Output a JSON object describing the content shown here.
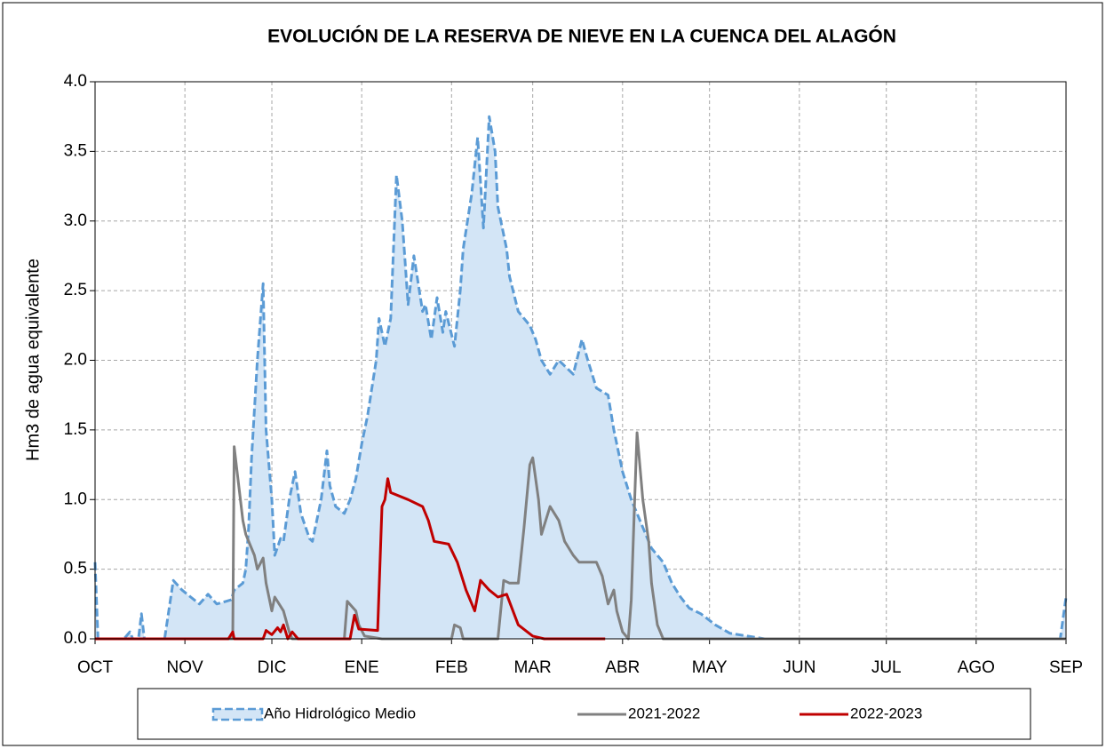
{
  "chart_data": {
    "type": "line",
    "title": "EVOLUCIÓN  DE LA RESERVA DE NIEVE EN LA CUENCA DEL ALAGÓN",
    "y_label": "Hm3  de agua equivalente",
    "xlim": [
      0,
      335
    ],
    "xticks": [
      {
        "value": 0,
        "label": "OCT"
      },
      {
        "value": 31,
        "label": "NOV"
      },
      {
        "value": 61,
        "label": "DIC"
      },
      {
        "value": 92,
        "label": "ENE"
      },
      {
        "value": 123,
        "label": "FEB"
      },
      {
        "value": 151,
        "label": "MAR"
      },
      {
        "value": 182,
        "label": "ABR"
      },
      {
        "value": 212,
        "label": "MAY"
      },
      {
        "value": 243,
        "label": "JUN"
      },
      {
        "value": 273,
        "label": "JUL"
      },
      {
        "value": 304,
        "label": "AGO"
      },
      {
        "value": 335,
        "label": "SEP"
      }
    ],
    "ylim": [
      0,
      4
    ],
    "yticks": [
      {
        "value": 0,
        "label": "0.0"
      },
      0.5,
      {
        "value": 1,
        "label": "1.0"
      },
      1.5,
      {
        "value": 2,
        "label": "2.0"
      },
      2.5,
      {
        "value": 3,
        "label": "3.0"
      },
      3.5,
      {
        "value": 4,
        "label": "4.0"
      }
    ],
    "grid": true,
    "legend": "bottom",
    "series": [
      {
        "name": "Año Hidrológico Medio",
        "color": "#5b9bd5",
        "fill": "#d3e5f6",
        "dashed": true,
        "x": [
          0,
          1,
          10,
          12,
          13,
          15,
          16,
          17,
          24,
          27,
          30,
          33,
          36,
          39,
          42,
          47,
          48,
          51,
          52,
          53,
          54,
          56,
          58,
          59,
          61,
          62,
          64,
          65,
          67,
          69,
          71,
          74,
          75,
          78,
          80,
          81,
          83,
          86,
          88,
          90,
          92,
          94,
          97,
          98,
          100,
          102,
          104,
          106,
          108,
          110,
          113,
          114,
          116,
          118,
          120,
          121,
          124,
          126,
          127,
          130,
          132,
          134,
          136,
          138,
          139,
          142,
          143,
          146,
          150,
          152,
          154,
          157,
          160,
          165,
          168,
          170,
          173,
          177,
          179,
          182,
          185,
          188,
          192,
          196,
          199,
          202,
          205,
          209,
          214,
          219,
          225,
          231,
          333,
          335
        ],
        "values": [
          0.55,
          0,
          0,
          0.05,
          0,
          0,
          0.18,
          0,
          0,
          0.42,
          0.35,
          0.3,
          0.25,
          0.32,
          0.25,
          0.28,
          0.35,
          0.4,
          0.5,
          0.8,
          1.3,
          2.0,
          2.55,
          1.5,
          1.0,
          0.6,
          0.72,
          0.7,
          1.0,
          1.2,
          0.9,
          0.72,
          0.7,
          1.0,
          1.35,
          1.1,
          0.95,
          0.9,
          1.0,
          1.15,
          1.4,
          1.6,
          2.0,
          2.3,
          2.1,
          2.3,
          3.33,
          3.0,
          2.4,
          2.75,
          2.35,
          2.4,
          2.15,
          2.45,
          2.2,
          2.35,
          2.1,
          2.5,
          2.8,
          3.2,
          3.6,
          2.95,
          3.75,
          3.5,
          3.1,
          2.8,
          2.6,
          2.35,
          2.25,
          2.15,
          2.0,
          1.9,
          2.0,
          1.9,
          2.15,
          2.0,
          1.8,
          1.75,
          1.5,
          1.2,
          1.0,
          0.85,
          0.65,
          0.55,
          0.4,
          0.3,
          0.22,
          0.18,
          0.1,
          0.04,
          0.02,
          0,
          0,
          0.3
        ]
      },
      {
        "name": "2021-2022",
        "color": "#808080",
        "x": [
          0,
          47.5,
          48,
          49,
          51,
          52,
          55,
          56,
          58,
          59,
          61,
          62,
          65,
          67,
          68,
          86,
          87,
          90,
          91,
          93,
          99,
          123,
          124,
          126,
          127,
          139,
          141,
          143,
          146,
          148,
          150,
          151,
          153,
          154,
          157,
          160,
          162,
          165,
          167,
          173,
          175,
          177,
          179,
          180,
          182,
          184,
          185,
          186,
          187,
          189,
          191,
          192,
          194,
          196,
          335
        ],
        "values": [
          0,
          0,
          1.38,
          1.2,
          0.85,
          0.75,
          0.6,
          0.5,
          0.58,
          0.4,
          0.2,
          0.3,
          0.2,
          0.05,
          0,
          0,
          0.27,
          0.2,
          0.1,
          0.02,
          0,
          0,
          0.1,
          0.08,
          0,
          0,
          0.42,
          0.4,
          0.4,
          0.8,
          1.25,
          1.3,
          1.0,
          0.75,
          0.95,
          0.85,
          0.7,
          0.6,
          0.55,
          0.55,
          0.45,
          0.25,
          0.35,
          0.2,
          0.05,
          0,
          0.28,
          0.9,
          1.48,
          1.0,
          0.7,
          0.4,
          0.1,
          0,
          0
        ]
      },
      {
        "name": "2022-2023",
        "color": "#c00000",
        "x": [
          0,
          46,
          47.5,
          48,
          58,
          59,
          61,
          63,
          64,
          65,
          66.5,
          68,
          70,
          88,
          89.5,
          91,
          97.5,
          99,
          100,
          101,
          102,
          108,
          113,
          115,
          117,
          122,
          125,
          128,
          131,
          133,
          136,
          139,
          142,
          146,
          151,
          155,
          176
        ],
        "values": [
          0,
          0,
          0.05,
          0,
          0,
          0.06,
          0.03,
          0.08,
          0.05,
          0.1,
          0,
          0.05,
          0,
          0,
          0.17,
          0.07,
          0.06,
          0.95,
          1.0,
          1.15,
          1.05,
          1.0,
          0.95,
          0.85,
          0.7,
          0.68,
          0.55,
          0.35,
          0.2,
          0.42,
          0.35,
          0.3,
          0.32,
          0.1,
          0.02,
          0,
          0
        ]
      }
    ]
  }
}
